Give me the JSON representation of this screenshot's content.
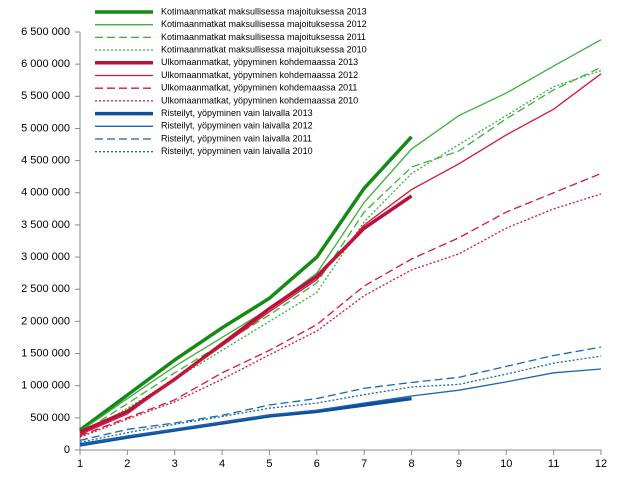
{
  "chart_data": {
    "type": "line",
    "x": [
      1,
      2,
      3,
      4,
      5,
      6,
      7,
      8,
      9,
      10,
      11,
      12
    ],
    "xlim": [
      1,
      12
    ],
    "xticks": [
      1,
      2,
      3,
      4,
      5,
      6,
      7,
      8,
      9,
      10,
      11,
      12
    ],
    "ylim": [
      0,
      6500000
    ],
    "yticks": [
      0,
      {
        "value": 500000,
        "label": "500 000"
      },
      {
        "value": 1000000,
        "label": "1 000 000"
      },
      {
        "value": 1500000,
        "label": "1 500 000"
      },
      {
        "value": 2000000,
        "label": "2 000 000"
      },
      {
        "value": 2500000,
        "label": "2 500 000"
      },
      {
        "value": 3000000,
        "label": "3 000 000"
      },
      {
        "value": 3500000,
        "label": "3 500 000"
      },
      {
        "value": 4000000,
        "label": "4 000 000"
      },
      {
        "value": 4500000,
        "label": "4 500 000"
      },
      {
        "value": 5000000,
        "label": "5 000 000"
      },
      {
        "value": 5500000,
        "label": "5 500 000"
      },
      {
        "value": 6000000,
        "label": "6 000 000"
      },
      {
        "value": 6500000,
        "label": "6 500 000"
      }
    ],
    "grid": false,
    "legend": "upper left",
    "series": [
      {
        "name": "Kotimaanmatkat maksullisessa majoituksessa 2013",
        "color": "#168a16",
        "style": "solid",
        "bold": true,
        "values": [
          310000,
          855000,
          1400000,
          1900000,
          2360000,
          3000000,
          4070000,
          4870000,
          null,
          null,
          null,
          null
        ]
      },
      {
        "name": "Kotimaanmatkat maksullisessa majoituksessa 2012",
        "color": "#3cb03c",
        "style": "solid",
        "bold": false,
        "values": [
          290000,
          800000,
          1300000,
          1750000,
          2200000,
          2750000,
          3850000,
          4680000,
          5200000,
          5550000,
          5970000,
          6380000
        ]
      },
      {
        "name": "Kotimaanmatkat maksullisessa majoituksessa 2011",
        "color": "#3cb03c",
        "style": "dashed",
        "bold": false,
        "values": [
          250000,
          720000,
          1200000,
          1650000,
          2100000,
          2600000,
          3700000,
          4400000,
          4650000,
          5150000,
          5600000,
          5950000
        ]
      },
      {
        "name": "Kotimaanmatkat maksullisessa majoituksessa 2010",
        "color": "#3cb03c",
        "style": "dotted",
        "bold": false,
        "values": [
          220000,
          650000,
          1100000,
          1550000,
          2000000,
          2450000,
          3550000,
          4300000,
          4750000,
          5200000,
          5650000,
          5900000
        ]
      },
      {
        "name": "Ulkomaanmatkat, yöpyminen kohdemaassa 2013",
        "color": "#b8123c",
        "style": "solid",
        "bold": true,
        "values": [
          280000,
          600000,
          1100000,
          1650000,
          2200000,
          2700000,
          3450000,
          3950000,
          null,
          null,
          null,
          null
        ]
      },
      {
        "name": "Ulkomaanmatkat, yöpyminen kohdemaassa 2012",
        "color": "#d4163f",
        "style": "solid",
        "bold": false,
        "values": [
          240000,
          560000,
          1100000,
          1620000,
          2150000,
          2650000,
          3500000,
          4050000,
          4450000,
          4900000,
          5300000,
          5850000
        ]
      },
      {
        "name": "Ulkomaanmatkat, yöpyminen kohdemaassa 2011",
        "color": "#d4163f",
        "style": "dashed",
        "bold": false,
        "values": [
          220000,
          500000,
          780000,
          1200000,
          1550000,
          1950000,
          2550000,
          2970000,
          3300000,
          3700000,
          4000000,
          4300000
        ]
      },
      {
        "name": "Ulkomaanmatkat, yöpyminen kohdemaassa 2010",
        "color": "#d4163f",
        "style": "dotted",
        "bold": false,
        "values": [
          200000,
          480000,
          750000,
          1100000,
          1480000,
          1850000,
          2400000,
          2800000,
          3050000,
          3450000,
          3750000,
          3980000
        ]
      },
      {
        "name": "Risteilyt, yöpyminen vain laivalla 2013",
        "color": "#0f4f9a",
        "style": "solid",
        "bold": true,
        "values": [
          80000,
          200000,
          310000,
          420000,
          530000,
          600000,
          700000,
          800000,
          null,
          null,
          null,
          null
        ]
      },
      {
        "name": "Risteilyt, yöpyminen vain laivalla 2012",
        "color": "#1a66b0",
        "style": "solid",
        "bold": false,
        "values": [
          80000,
          210000,
          320000,
          430000,
          540000,
          620000,
          730000,
          840000,
          930000,
          1060000,
          1200000,
          1260000
        ]
      },
      {
        "name": "Risteilyt, yöpyminen vain laivalla 2011",
        "color": "#1a66b0",
        "style": "dashed",
        "bold": false,
        "values": [
          150000,
          320000,
          420000,
          540000,
          700000,
          800000,
          960000,
          1050000,
          1130000,
          1300000,
          1470000,
          1600000
        ]
      },
      {
        "name": "Risteilyt, yöpyminen vain laivalla 2010",
        "color": "#1a66b0",
        "style": "dotted",
        "bold": false,
        "values": [
          120000,
          270000,
          400000,
          520000,
          650000,
          730000,
          860000,
          980000,
          1020000,
          1180000,
          1350000,
          1460000
        ]
      }
    ]
  }
}
